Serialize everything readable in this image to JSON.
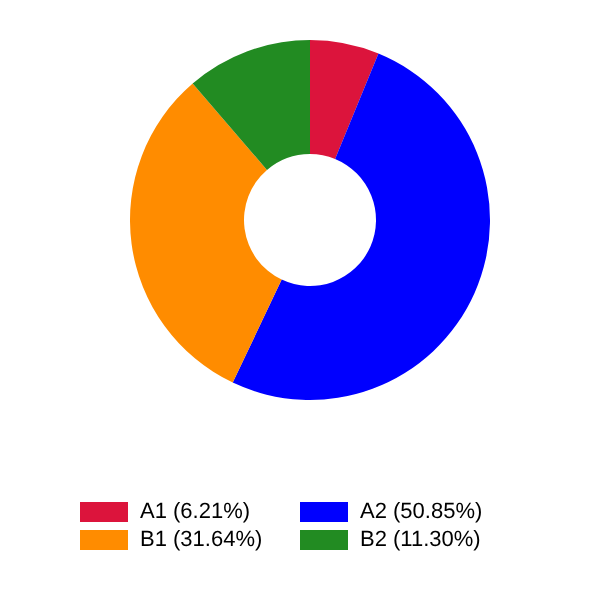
{
  "chart_data": {
    "type": "donut",
    "categories": [
      "A1 (6.21%)",
      "A2 (50.85%)",
      "B1 (31.64%)",
      "B2 (11.30%)"
    ],
    "values": [
      6.21,
      50.85,
      31.64,
      11.3
    ],
    "colors": [
      "#dc143c",
      "#0000ff",
      "#ff8c00",
      "#228b22"
    ],
    "legend": "bottom"
  }
}
